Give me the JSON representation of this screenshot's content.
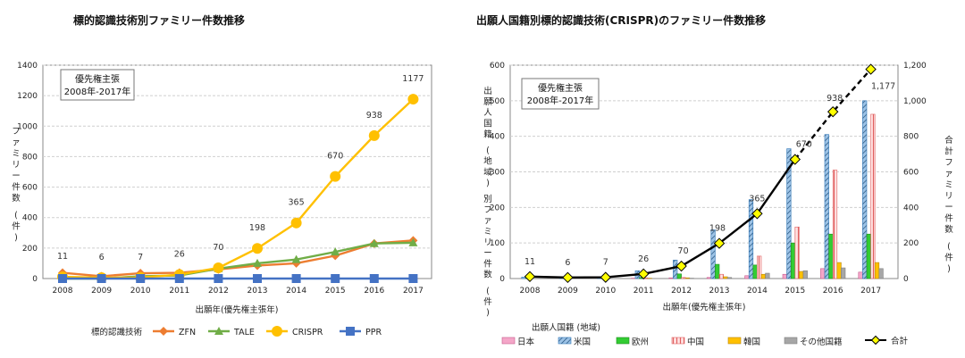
{
  "chart_data": [
    {
      "type": "line",
      "title": "標的認識技術別ファミリー件数推移",
      "xlabel": "出願年(優先権主張年)",
      "ylabel": "ファミリー件数 (件)",
      "ylim": [
        0,
        1400
      ],
      "yticks": [
        0,
        200,
        400,
        600,
        800,
        1000,
        1200,
        1400
      ],
      "categories": [
        "2008",
        "2009",
        "2010",
        "2011",
        "2012",
        "2013",
        "2014",
        "2015",
        "2016",
        "2017"
      ],
      "annotation": [
        "優先権主張",
        "2008年-2017年"
      ],
      "legend_title": "標的認識技術",
      "legend_position": "bottom",
      "data_labels_series": "CRISPR",
      "data_labels": [
        "11",
        "6",
        "7",
        "26",
        "70",
        "198",
        "365",
        "670",
        "938",
        "1177"
      ],
      "series": [
        {
          "name": "ZFN",
          "color": "#ED7D31",
          "marker": "diamond",
          "values": [
            38,
            15,
            35,
            38,
            60,
            85,
            100,
            150,
            230,
            250
          ]
        },
        {
          "name": "TALE",
          "color": "#70AD47",
          "marker": "triangle",
          "values": [
            0,
            0,
            15,
            20,
            65,
            100,
            125,
            175,
            230,
            235
          ]
        },
        {
          "name": "CRISPR",
          "color": "#FFC000",
          "marker": "circle",
          "values": [
            11,
            6,
            7,
            26,
            70,
            198,
            365,
            670,
            938,
            1177
          ]
        },
        {
          "name": "PPR",
          "color": "#4472C4",
          "marker": "square",
          "values": [
            0,
            0,
            0,
            0,
            0,
            0,
            0,
            0,
            0,
            0
          ]
        }
      ]
    },
    {
      "type": "bar",
      "title": "出願人国籍別標的認識技術(CRISPR)のファミリー件数推移",
      "xlabel": "出願年(優先権主張年)",
      "ylabel": "出願人国籍 (地域) 別ファミリー件数 (件)",
      "y2label": "合計ファミリー件数 (件)",
      "ylim": [
        0,
        600
      ],
      "yticks": [
        0,
        100,
        200,
        300,
        400,
        500,
        600
      ],
      "y2lim": [
        0,
        1200
      ],
      "y2ticks": [
        "0",
        "200",
        "400",
        "600",
        "800",
        "1,000",
        "1,200"
      ],
      "categories": [
        "2008",
        "2009",
        "2010",
        "2011",
        "2012",
        "2013",
        "2014",
        "2015",
        "2016",
        "2017"
      ],
      "annotation": [
        "優先権主張",
        "2008年-2017年"
      ],
      "legend_title": "出願人国籍 (地域)",
      "legend_position": "bottom",
      "series": [
        {
          "name": "日本",
          "color": "#F4A6C8",
          "values": [
            0,
            0,
            0,
            1,
            2,
            3,
            8,
            12,
            28,
            18
          ]
        },
        {
          "name": "米国",
          "color": "#9DC3E6",
          "values": [
            4,
            3,
            3,
            22,
            52,
            137,
            222,
            365,
            405,
            500
          ]
        },
        {
          "name": "欧州",
          "color": "#33CC33",
          "values": [
            1,
            1,
            1,
            3,
            13,
            40,
            38,
            100,
            125,
            125
          ]
        },
        {
          "name": "中国",
          "color": "#FFB3B3",
          "values": [
            0,
            0,
            0,
            2,
            3,
            12,
            63,
            145,
            305,
            462
          ]
        },
        {
          "name": "韓国",
          "color": "#FFC000",
          "values": [
            0,
            0,
            0,
            1,
            2,
            5,
            12,
            20,
            45,
            45
          ]
        },
        {
          "name": "その他国籍",
          "color": "#A6A6A6",
          "values": [
            0,
            0,
            0,
            0,
            1,
            3,
            15,
            22,
            30,
            28
          ]
        }
      ],
      "total_series": {
        "name": "合計",
        "axis": "right",
        "color": "#000000",
        "marker_color": "#FFFF00",
        "values": [
          11,
          6,
          7,
          26,
          70,
          198,
          365,
          670,
          938,
          1177
        ],
        "labels": [
          "11",
          "6",
          "7",
          "26",
          "70",
          "198",
          "365",
          "670",
          "938",
          "1,177"
        ]
      }
    }
  ]
}
